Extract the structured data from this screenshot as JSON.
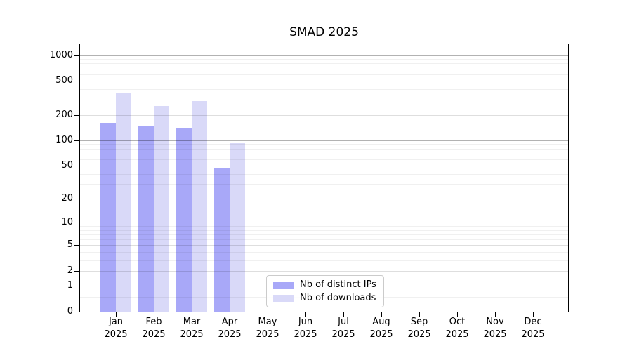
{
  "figure": {
    "title": "SMAD 2025"
  },
  "chart_data": {
    "type": "bar",
    "title": "SMAD 2025",
    "categories": [
      "Jan",
      "Feb",
      "Mar",
      "Apr",
      "May",
      "Jun",
      "Jul",
      "Aug",
      "Sep",
      "Oct",
      "Nov",
      "Dec"
    ],
    "x_year": "2025",
    "series": [
      {
        "name": "Nb of distinct IPs",
        "color": "#a8a8f8",
        "values": [
          160,
          145,
          142,
          47,
          0,
          0,
          0,
          0,
          0,
          0,
          0,
          0
        ]
      },
      {
        "name": "Nb of downloads",
        "color": "#d9d9f8",
        "values": [
          355,
          253,
          290,
          95,
          0,
          0,
          0,
          0,
          0,
          0,
          0,
          0
        ]
      }
    ],
    "y_ticks": [
      0,
      1,
      2,
      5,
      10,
      20,
      50,
      100,
      200,
      500,
      1000
    ],
    "y_scale": "log1p",
    "ylim": [
      0,
      1400
    ],
    "xlabel": "",
    "ylabel": "",
    "grid": "horizontal",
    "legend_position": "lower-center"
  }
}
